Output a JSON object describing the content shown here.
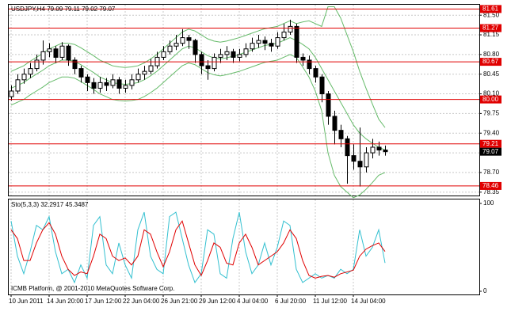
{
  "chart_data": [
    {
      "type": "candlestick",
      "title": "USDJPY,H4 79.09 79.11 79.02 79.07",
      "categories": [
        "10 Jun 2011",
        null,
        null,
        null,
        null,
        null,
        "14 Jun 20:00",
        null,
        null,
        null,
        null,
        null,
        "17 Jun 12:00",
        null,
        null,
        null,
        null,
        null,
        "22 Jun 04:00",
        null,
        null,
        null,
        null,
        null,
        "26 Jun 21:00",
        null,
        null,
        null,
        null,
        null,
        "29 Jun 12:00",
        null,
        null,
        null,
        null,
        null,
        "4 Jul 04:00",
        null,
        null,
        null,
        null,
        null,
        "6 Jul 20:00",
        null,
        null,
        null,
        null,
        null,
        "11 Jul 12:00",
        null,
        null,
        null,
        null,
        null,
        "14 Jul 04:00",
        null,
        null,
        null,
        null,
        null
      ],
      "open": [
        80.05,
        80.15,
        80.35,
        80.45,
        80.55,
        80.7,
        80.85,
        80.9,
        80.75,
        80.95,
        80.7,
        80.55,
        80.4,
        80.3,
        80.2,
        80.3,
        80.25,
        80.35,
        80.2,
        80.25,
        80.35,
        80.45,
        80.5,
        80.6,
        80.75,
        80.85,
        80.95,
        81.0,
        81.1,
        81.05,
        80.8,
        80.6,
        80.55,
        80.75,
        80.8,
        80.85,
        80.75,
        80.8,
        80.9,
        81.0,
        81.05,
        81.0,
        80.95,
        81.1,
        81.2,
        81.3,
        80.75,
        80.7,
        80.55,
        80.4,
        80.1,
        79.7,
        79.45,
        79.3,
        79.0,
        78.9,
        78.8,
        79.05,
        79.15,
        79.1
      ],
      "high": [
        80.25,
        80.45,
        80.55,
        80.65,
        80.8,
        81.05,
        81.0,
        80.95,
        81.02,
        80.98,
        80.75,
        80.6,
        80.45,
        80.38,
        80.4,
        80.38,
        80.45,
        80.4,
        80.35,
        80.45,
        80.55,
        80.6,
        80.72,
        80.85,
        80.95,
        81.05,
        81.15,
        81.25,
        81.15,
        81.08,
        80.85,
        80.7,
        80.82,
        80.9,
        80.95,
        80.9,
        80.9,
        81.0,
        81.1,
        81.15,
        81.12,
        81.08,
        81.2,
        81.35,
        81.42,
        81.35,
        80.82,
        80.78,
        80.6,
        80.45,
        80.15,
        79.8,
        79.55,
        79.35,
        79.2,
        79.5,
        79.15,
        79.3,
        79.25,
        79.18
      ],
      "low": [
        79.98,
        80.1,
        80.28,
        80.38,
        80.5,
        80.62,
        80.75,
        80.65,
        80.7,
        80.6,
        80.45,
        80.3,
        80.15,
        80.1,
        80.12,
        80.15,
        80.2,
        80.1,
        80.12,
        80.18,
        80.3,
        80.35,
        80.45,
        80.55,
        80.7,
        80.8,
        80.88,
        80.95,
        80.9,
        80.65,
        80.45,
        80.35,
        80.5,
        80.65,
        80.7,
        80.65,
        80.68,
        80.75,
        80.85,
        80.92,
        80.88,
        80.85,
        80.9,
        81.05,
        81.15,
        80.65,
        80.6,
        80.45,
        80.3,
        79.95,
        79.55,
        79.2,
        79.15,
        78.5,
        78.75,
        78.45,
        78.7,
        78.95,
        79.0,
        79.0
      ],
      "close": [
        80.15,
        80.35,
        80.45,
        80.55,
        80.7,
        80.85,
        80.9,
        80.75,
        80.95,
        80.7,
        80.55,
        80.4,
        80.3,
        80.2,
        80.3,
        80.25,
        80.35,
        80.2,
        80.25,
        80.35,
        80.45,
        80.5,
        80.6,
        80.75,
        80.85,
        80.95,
        81.0,
        81.1,
        81.05,
        80.8,
        80.6,
        80.55,
        80.75,
        80.8,
        80.85,
        80.75,
        80.8,
        80.9,
        81.0,
        81.05,
        81.0,
        80.95,
        81.1,
        81.2,
        81.3,
        80.75,
        80.7,
        80.55,
        80.4,
        80.1,
        79.7,
        79.45,
        79.3,
        79.0,
        78.9,
        78.8,
        79.05,
        79.15,
        79.1,
        79.07
      ],
      "series": [
        {
          "color": "#66bb6a",
          "values": [
            80.5,
            80.55,
            80.6,
            80.68,
            80.75,
            80.82,
            80.9,
            80.95,
            81.0,
            81.0,
            80.98,
            80.92,
            80.85,
            80.78,
            80.7,
            80.65,
            80.6,
            80.58,
            80.57,
            80.58,
            80.6,
            80.65,
            80.72,
            80.8,
            80.9,
            81.0,
            81.1,
            81.2,
            81.25,
            81.22,
            81.15,
            81.08,
            81.04,
            81.02,
            81.04,
            81.07,
            81.1,
            81.14,
            81.18,
            81.22,
            81.26,
            81.28,
            81.3,
            81.35,
            81.4,
            81.35,
            81.38,
            81.4,
            81.35,
            81.3,
            81.65,
            81.65,
            81.45,
            81.15,
            80.85,
            80.5,
            80.2,
            79.92,
            79.65,
            79.5
          ]
        },
        {
          "color": "#66bb6a",
          "values": [
            80.2,
            80.25,
            80.3,
            80.38,
            80.45,
            80.52,
            80.6,
            80.65,
            80.7,
            80.7,
            80.68,
            80.62,
            80.55,
            80.48,
            80.4,
            80.35,
            80.3,
            80.28,
            80.27,
            80.28,
            80.3,
            80.35,
            80.42,
            80.5,
            80.6,
            80.7,
            80.8,
            80.9,
            80.95,
            80.92,
            80.85,
            80.78,
            80.74,
            80.72,
            80.74,
            80.77,
            80.8,
            80.84,
            80.88,
            80.92,
            80.96,
            80.98,
            81.0,
            81.05,
            81.1,
            81.05,
            80.98,
            80.9,
            80.75,
            80.55,
            80.35,
            80.15,
            79.95,
            79.75,
            79.55,
            79.4,
            79.3,
            79.22,
            79.15,
            79.1
          ]
        },
        {
          "color": "#66bb6a",
          "values": [
            79.9,
            79.95,
            80.0,
            80.08,
            80.15,
            80.22,
            80.3,
            80.35,
            80.4,
            80.4,
            80.38,
            80.32,
            80.25,
            80.18,
            80.1,
            80.05,
            80.0,
            79.98,
            79.97,
            79.98,
            80.0,
            80.05,
            80.12,
            80.2,
            80.3,
            80.4,
            80.5,
            80.6,
            80.65,
            80.62,
            80.55,
            80.48,
            80.44,
            80.42,
            80.44,
            80.47,
            80.5,
            80.54,
            80.58,
            80.62,
            80.66,
            80.68,
            80.7,
            80.75,
            80.8,
            80.75,
            80.58,
            80.4,
            80.15,
            79.8,
            79.05,
            78.65,
            78.45,
            78.35,
            78.25,
            78.3,
            78.4,
            78.52,
            78.65,
            78.7
          ]
        }
      ],
      "levels": {
        "color": "#e00000",
        "values": [
          81.61,
          81.27,
          80.67,
          80.0,
          79.21,
          78.46
        ],
        "value_labels": [
          "81.61",
          "81.27",
          "80.67",
          "80.00",
          "79.21",
          "78.46"
        ]
      },
      "current": {
        "value": 79.07,
        "label": "79.07"
      },
      "ylim": [
        78.29,
        81.7
      ],
      "yticks": [
        {
          "value": 81.5,
          "label": "81.50"
        },
        {
          "value": 81.15,
          "label": "81.15"
        },
        {
          "value": 80.8,
          "label": "80.80"
        },
        {
          "value": 80.45,
          "label": "80.45"
        },
        {
          "value": 80.1,
          "label": "80.10"
        },
        {
          "value": 79.75,
          "label": "79.75"
        },
        {
          "value": 79.4,
          "label": "79.40"
        },
        {
          "value": 79.05,
          "label": "79.05"
        },
        {
          "value": 78.7,
          "label": "78.70"
        },
        {
          "value": 78.35,
          "label": "78.35"
        }
      ],
      "grid": true
    },
    {
      "type": "line",
      "title": "Sto(5,3,3) 32.2917 45.3487",
      "annotation": "ICMB Platform, @ 2001-2010 MetaQuotes Software Corp.",
      "series": [
        {
          "color": "#33c0d0",
          "values": [
            80,
            40,
            20,
            45,
            75,
            70,
            85,
            45,
            20,
            25,
            10,
            30,
            15,
            75,
            85,
            30,
            20,
            55,
            30,
            15,
            70,
            90,
            40,
            25,
            20,
            85,
            90,
            60,
            30,
            10,
            20,
            70,
            65,
            20,
            15,
            60,
            90,
            45,
            20,
            30,
            55,
            30,
            50,
            80,
            75,
            25,
            10,
            15,
            20,
            15,
            18,
            15,
            25,
            20,
            25,
            70,
            40,
            50,
            70,
            32.29
          ]
        },
        {
          "color": "#e00000",
          "values": [
            70,
            60,
            35,
            35,
            55,
            70,
            78,
            65,
            40,
            25,
            18,
            22,
            20,
            40,
            65,
            60,
            40,
            35,
            38,
            30,
            40,
            70,
            65,
            45,
            28,
            45,
            70,
            80,
            55,
            30,
            18,
            35,
            55,
            50,
            32,
            30,
            55,
            65,
            50,
            30,
            35,
            40,
            45,
            55,
            70,
            60,
            35,
            18,
            15,
            17,
            18,
            16,
            20,
            22,
            24,
            40,
            48,
            52,
            55,
            45.35
          ]
        }
      ],
      "ylim": [
        0,
        100
      ],
      "yticks": [
        100,
        0
      ]
    }
  ]
}
